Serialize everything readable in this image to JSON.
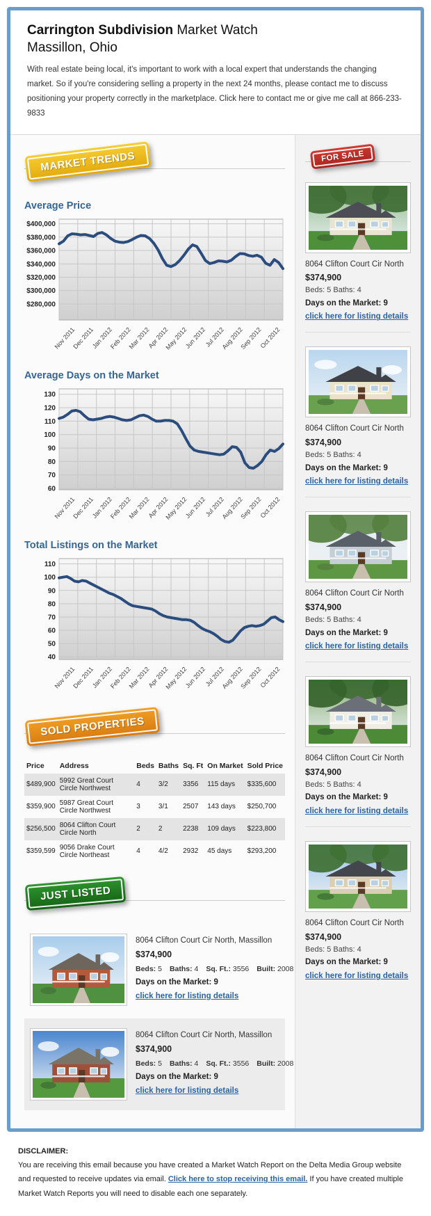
{
  "header": {
    "title_bold": "Carrington Subdivision",
    "title_rest": " Market Watch",
    "subtitle": "Massillon, Ohio",
    "intro": "With real estate being local, it's important to work with a local expert that understands the changing market. So if you're considering selling a property in the next 24 months, please contact me to discuss positioning your property correctly in the marketplace. Click here to contact me or give me call at 866-233-9833"
  },
  "badges": {
    "market_trends": "MARKET TRENDS",
    "for_sale": "FOR SALE",
    "sold_properties": "SOLD PROPERTIES",
    "just_listed": "JUST LISTED"
  },
  "colors": {
    "frame_blue": "#6b9dcb",
    "heading_blue": "#336699",
    "chart_line": "#2b4d7e",
    "link_blue": "#2a64a8",
    "badge_yellow": "#eeb71c",
    "badge_red": "#c5332c",
    "badge_orange": "#e3891c",
    "badge_green": "#27842a",
    "table_stripe": "#e4e4e4"
  },
  "chart_data": [
    {
      "type": "line",
      "title": "Average Price",
      "categories": [
        "Nov 2011",
        "Dec 2011",
        "Jan 2012",
        "Feb 2012",
        "Mar 2012",
        "Apr 2012",
        "May 2012",
        "Jun 2012",
        "Jul 2012",
        "Aug 2012",
        "Sep 2012",
        "Oct 2012"
      ],
      "values": [
        370000,
        374000,
        382000,
        385000,
        384500,
        383500,
        384000,
        382500,
        381000,
        385500,
        387000,
        383500,
        378000,
        374000,
        372500,
        372000,
        373500,
        376500,
        380000,
        382500,
        382000,
        378000,
        371000,
        361000,
        348000,
        338000,
        336000,
        339000,
        345000,
        353000,
        362000,
        368500,
        366000,
        356000,
        345000,
        340500,
        342000,
        344500,
        344000,
        343000,
        345500,
        351000,
        355500,
        355000,
        352500,
        351500,
        353000,
        350000,
        341000,
        338000,
        346500,
        342000,
        333000
      ],
      "ylim": [
        256000,
        407000
      ],
      "yticks": [
        {
          "v": 400000,
          "label": "$400,000"
        },
        {
          "v": 380000,
          "label": "$380,000"
        },
        {
          "v": 360000,
          "label": "$360,000"
        },
        {
          "v": 340000,
          "label": "$340,000"
        },
        {
          "v": 320000,
          "label": "$320,000"
        },
        {
          "v": 300000,
          "label": "$300,000"
        },
        {
          "v": 280000,
          "label": "$280,000"
        }
      ],
      "xlabel": "",
      "ylabel": "",
      "grid": true,
      "legend": "none"
    },
    {
      "type": "line",
      "title": "Average Days on the Market",
      "categories": [
        "Nov 2011",
        "Dec 2011",
        "Jan 2012",
        "Feb 2012",
        "Mar 2012",
        "Apr 2012",
        "May 2012",
        "Jun 2012",
        "Jul 2012",
        "Aug 2012",
        "Sep 2012",
        "Oct 2012"
      ],
      "values": [
        112,
        113,
        115,
        117.5,
        118,
        117,
        114,
        111.5,
        111,
        111.5,
        112,
        113,
        113.5,
        113,
        112,
        111,
        110.5,
        111,
        112.5,
        114,
        114.5,
        113.5,
        111.5,
        110,
        110,
        110.5,
        110.5,
        110,
        108,
        103,
        97,
        91.5,
        88.5,
        87.5,
        87,
        86.5,
        86,
        85.5,
        85,
        85.5,
        88,
        91,
        90.5,
        87,
        79,
        75.5,
        75,
        77,
        80,
        85,
        88.5,
        87.5,
        89.5,
        93
      ],
      "ylim": [
        59,
        134
      ],
      "yticks": [
        {
          "v": 130,
          "label": "130"
        },
        {
          "v": 120,
          "label": "120"
        },
        {
          "v": 110,
          "label": "110"
        },
        {
          "v": 100,
          "label": "100"
        },
        {
          "v": 90,
          "label": "90"
        },
        {
          "v": 80,
          "label": "80"
        },
        {
          "v": 70,
          "label": "70"
        },
        {
          "v": 60,
          "label": "60"
        }
      ],
      "xlabel": "",
      "ylabel": "",
      "grid": true,
      "legend": "none"
    },
    {
      "type": "line",
      "title": "Total Listings on the Market",
      "categories": [
        "Nov 2011",
        "Dec 2011",
        "Jan 2012",
        "Feb 2012",
        "Mar 2012",
        "Apr 2012",
        "May 2012",
        "Jun 2012",
        "Jul 2012",
        "Aug 2012",
        "Sep 2012",
        "Oct 2012"
      ],
      "values": [
        99.5,
        100,
        100.5,
        99,
        97,
        96.5,
        97.5,
        97,
        95.5,
        94,
        92.5,
        91,
        89.5,
        88,
        87,
        85.5,
        84,
        82,
        80,
        78.5,
        78,
        77.5,
        77,
        76.5,
        76,
        74.5,
        72.5,
        71,
        70,
        69.5,
        69,
        68.5,
        68,
        68,
        67.5,
        66,
        63.5,
        61.5,
        60,
        59,
        57.5,
        55.5,
        53,
        51.5,
        51,
        52.5,
        56,
        59.5,
        62,
        63,
        63.5,
        63,
        63.5,
        64.5,
        67,
        69.5,
        70,
        68,
        66.5
      ],
      "ylim": [
        38,
        114
      ],
      "yticks": [
        {
          "v": 110,
          "label": "110"
        },
        {
          "v": 100,
          "label": "100"
        },
        {
          "v": 90,
          "label": "90"
        },
        {
          "v": 80,
          "label": "80"
        },
        {
          "v": 70,
          "label": "70"
        },
        {
          "v": 60,
          "label": "60"
        },
        {
          "v": 50,
          "label": "50"
        },
        {
          "v": 40,
          "label": "40"
        }
      ],
      "xlabel": "",
      "ylabel": "",
      "grid": true,
      "legend": "none"
    }
  ],
  "sold_table": {
    "headers": [
      "Price",
      "Address",
      "Beds",
      "Baths",
      "Sq. Ft",
      "On Market",
      "Sold Price"
    ],
    "rows": [
      [
        "$489,900",
        "5992 Great Court Circle Northwest",
        "4",
        "3/2",
        "3356",
        "115 days",
        "$335,600"
      ],
      [
        "$359,900",
        "5987 Great Court Circle Northwest",
        "3",
        "3/1",
        "2507",
        "143 days",
        "$250,700"
      ],
      [
        "$256,500",
        "8064 Clifton Court Circle North",
        "2",
        "2",
        "2238",
        "109 days",
        "$223,800"
      ],
      [
        "$359,599",
        "9056 Drake Court Circle Northeast",
        "4",
        "4/2",
        "2932",
        "45 days",
        "$293,200"
      ]
    ]
  },
  "for_sale_listings": [
    {
      "address": "8064 Clifton Court Cir North",
      "price": "$374,900",
      "beds_baths": "Beds: 5 Baths: 4",
      "days_on_market": "Days on the Market: 9",
      "link": "click here for listing details",
      "photo": {
        "sky": "#8fb98a",
        "tree": "#3e6b33",
        "wall": "#e9e4d2",
        "roof": "#4d4d55",
        "grass": "#4e8f3a",
        "trees": true
      }
    },
    {
      "address": "8064 Clifton Court Cir North",
      "price": "$374,900",
      "beds_baths": "Beds: 5 Baths: 4",
      "days_on_market": "Days on the Market: 9",
      "link": "click here for listing details",
      "photo": {
        "sky": "#b9d6ee",
        "tree": "#4c7a3c",
        "wall": "#eae3c9",
        "roof": "#3f4147",
        "grass": "#6aa14f",
        "trees": false
      }
    },
    {
      "address": "8064 Clifton Court Cir North",
      "price": "$374,900",
      "beds_baths": "Beds: 5 Baths: 4",
      "days_on_market": "Days on the Market: 9",
      "link": "click here for listing details",
      "photo": {
        "sky": "#e4ebf0",
        "tree": "#55803f",
        "wall": "#c4ced4",
        "roof": "#596067",
        "grass": "#5d9743",
        "trees": true
      }
    },
    {
      "address": "8064 Clifton Court Cir North",
      "price": "$374,900",
      "beds_baths": "Beds: 5 Baths: 4",
      "days_on_market": "Days on the Market: 9",
      "link": "click here for listing details",
      "photo": {
        "sky": "#86ae72",
        "tree": "#36632c",
        "wall": "#f0ede4",
        "roof": "#6b6f78",
        "grass": "#4c8a38",
        "trees": true
      }
    },
    {
      "address": "8064 Clifton Court Cir North",
      "price": "$374,900",
      "beds_baths": "Beds: 5 Baths: 4",
      "days_on_market": "Days on the Market: 9",
      "link": "click here for listing details",
      "photo": {
        "sky": "#9cc2e8",
        "tree": "#3f7033",
        "wall": "#dacfb2",
        "roof": "#44464e",
        "grass": "#63a04b",
        "trees": true
      }
    }
  ],
  "just_listed": [
    {
      "address": "8064 Clifton Court Cir North, Massillon",
      "price": "$374,900",
      "specs": [
        {
          "label": "Beds:",
          "value": "5"
        },
        {
          "label": "Baths:",
          "value": "4"
        },
        {
          "label": "Sq. Ft.:",
          "value": "3556"
        },
        {
          "label": "Built:",
          "value": "2008"
        }
      ],
      "days_on_market": "Days on the Market: 9",
      "link": "click here for listing details",
      "photo": {
        "sky": "#a9cdec",
        "tree": "#46743a",
        "wall": "#b25a3e",
        "roof": "#6e665c",
        "grass": "#4f9140",
        "trees": false
      }
    },
    {
      "address": "8064 Clifton Court Cir North, Massillon",
      "price": "$374,900",
      "specs": [
        {
          "label": "Beds:",
          "value": "5"
        },
        {
          "label": "Baths:",
          "value": "4"
        },
        {
          "label": "Sq. Ft.:",
          "value": "3556"
        },
        {
          "label": "Built:",
          "value": "2008"
        }
      ],
      "days_on_market": "Days on the Market: 9",
      "link": "click here for listing details",
      "photo": {
        "sky": "#4b86cf",
        "tree": "#406f36",
        "wall": "#9e513a",
        "roof": "#7a7468",
        "grass": "#55993f",
        "trees": false
      }
    }
  ],
  "disclaimer": {
    "heading": "DISCLAIMER:",
    "text_before": "You are receiving this email because you have created a Market Watch Report on the Delta Media Group website and requested to receive updates via email. ",
    "link": "Click here to stop receiving this email.",
    "text_after": " If you have created multiple Market Watch Reports you will need to disable each one separately."
  }
}
